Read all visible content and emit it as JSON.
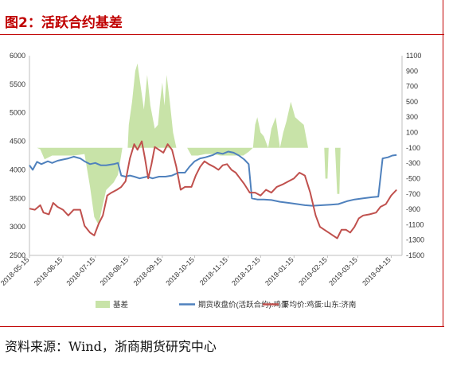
{
  "title": "图2：活跃合约基差",
  "source": "资料来源：Wind，浙商期货研究中心",
  "chart_data": {
    "type": "line",
    "title": "",
    "xlabel": "",
    "ylabel": "",
    "left_axis": {
      "ylim": [
        2500,
        6000
      ],
      "ticks": [
        "6000",
        "5500",
        "5000",
        "4500",
        "4000",
        "3500",
        "3000",
        "2500"
      ]
    },
    "right_axis": {
      "ylim": [
        -1500,
        1100
      ],
      "ticks": [
        "1100",
        "900",
        "700",
        "500",
        "300",
        "100",
        "-100",
        "-300",
        "-500",
        "-700",
        "-900",
        "-1100",
        "-1300",
        "-1500"
      ]
    },
    "x_ticks": [
      "2018-05-15",
      "2018-06-15",
      "2018-07-15",
      "2018-08-15",
      "2018-09-15",
      "2018-10-15",
      "2018-11-15",
      "2018-12-15",
      "2019-01-15",
      "2019-02-15",
      "2019-03-15",
      "2019-04-15"
    ],
    "x_range": [
      "2018-05-15",
      "2019-04-25"
    ],
    "grid": false,
    "legend_position": "bottom",
    "series": [
      {
        "name": "基差",
        "type": "area",
        "axis": "right",
        "color": "#c8e3a8",
        "points": [
          [
            "2018-05-15",
            -100
          ],
          [
            "2018-05-22",
            -100
          ],
          [
            "2018-05-25",
            -120
          ],
          [
            "2018-05-29",
            -250
          ],
          [
            "2018-06-05",
            -200
          ],
          [
            "2018-06-15",
            -200
          ],
          [
            "2018-06-25",
            -200
          ],
          [
            "2018-07-05",
            -180
          ],
          [
            "2018-07-10",
            -600
          ],
          [
            "2018-07-14",
            -1000
          ],
          [
            "2018-07-18",
            -1100
          ],
          [
            "2018-07-21",
            -900
          ],
          [
            "2018-07-25",
            -650
          ],
          [
            "2018-08-01",
            -550
          ],
          [
            "2018-08-05",
            -450
          ],
          [
            "2018-08-07",
            -280
          ],
          [
            "2018-08-09",
            -100
          ],
          [
            "2018-08-12",
            -100
          ],
          [
            "2018-08-14",
            -100
          ],
          [
            "2018-08-15",
            200
          ],
          [
            "2018-08-18",
            500
          ],
          [
            "2018-08-21",
            900
          ],
          [
            "2018-08-23",
            1000
          ],
          [
            "2018-08-26",
            700
          ],
          [
            "2018-08-29",
            400
          ],
          [
            "2018-09-01",
            850
          ],
          [
            "2018-09-04",
            450
          ],
          [
            "2018-09-08",
            150
          ],
          [
            "2018-09-11",
            200
          ],
          [
            "2018-09-13",
            500
          ],
          [
            "2018-09-15",
            750
          ],
          [
            "2018-09-17",
            450
          ],
          [
            "2018-09-19",
            850
          ],
          [
            "2018-09-22",
            500
          ],
          [
            "2018-09-25",
            100
          ],
          [
            "2018-09-28",
            -100
          ],
          [
            "2018-10-03",
            -100
          ],
          [
            "2018-10-08",
            -100
          ],
          [
            "2018-10-12",
            -200
          ],
          [
            "2018-10-18",
            -200
          ],
          [
            "2018-10-25",
            -180
          ],
          [
            "2018-11-01",
            -180
          ],
          [
            "2018-11-08",
            -200
          ],
          [
            "2018-11-15",
            -200
          ],
          [
            "2018-11-22",
            -200
          ],
          [
            "2018-11-29",
            -200
          ],
          [
            "2018-12-04",
            -150
          ],
          [
            "2018-12-08",
            -100
          ],
          [
            "2018-12-10",
            200
          ],
          [
            "2018-12-12",
            300
          ],
          [
            "2018-12-15",
            100
          ],
          [
            "2018-12-18",
            50
          ],
          [
            "2018-12-22",
            -100
          ],
          [
            "2018-12-25",
            150
          ],
          [
            "2018-12-29",
            300
          ],
          [
            "2019-01-02",
            -100
          ],
          [
            "2019-01-05",
            100
          ],
          [
            "2019-01-08",
            250
          ],
          [
            "2019-01-12",
            500
          ],
          [
            "2019-01-16",
            300
          ],
          [
            "2019-01-20",
            250
          ],
          [
            "2019-01-24",
            200
          ],
          [
            "2019-01-28",
            -100
          ],
          [
            "2019-02-05",
            -100
          ],
          [
            "2019-02-12",
            -100
          ],
          [
            "2019-02-13",
            -500
          ],
          [
            "2019-02-15",
            -500
          ],
          [
            "2019-02-16",
            -100
          ],
          [
            "2019-02-22",
            -100
          ],
          [
            "2019-02-24",
            -700
          ],
          [
            "2019-02-26",
            -700
          ],
          [
            "2019-02-27",
            -100
          ],
          [
            "2019-03-05",
            -100
          ],
          [
            "2019-03-10",
            -100
          ],
          [
            "2019-03-15",
            -100
          ],
          [
            "2019-03-20",
            -100
          ],
          [
            "2019-03-25",
            -100
          ],
          [
            "2019-03-30",
            -100
          ],
          [
            "2019-04-05",
            -100
          ],
          [
            "2019-04-10",
            -100
          ],
          [
            "2019-04-15",
            -100
          ],
          [
            "2019-04-20",
            -100
          ]
        ]
      },
      {
        "name": "期货收盘价(活跃合约):鸡蛋",
        "type": "line",
        "axis": "left",
        "color": "#4f81bd",
        "points": [
          [
            "2018-05-15",
            4080
          ],
          [
            "2018-05-18",
            4000
          ],
          [
            "2018-05-22",
            4140
          ],
          [
            "2018-05-26",
            4100
          ],
          [
            "2018-06-01",
            4150
          ],
          [
            "2018-06-05",
            4120
          ],
          [
            "2018-06-10",
            4160
          ],
          [
            "2018-06-15",
            4180
          ],
          [
            "2018-06-20",
            4200
          ],
          [
            "2018-06-25",
            4230
          ],
          [
            "2018-07-01",
            4200
          ],
          [
            "2018-07-05",
            4150
          ],
          [
            "2018-07-10",
            4100
          ],
          [
            "2018-07-15",
            4120
          ],
          [
            "2018-07-20",
            4080
          ],
          [
            "2018-07-25",
            4080
          ],
          [
            "2018-08-01",
            4100
          ],
          [
            "2018-08-05",
            4120
          ],
          [
            "2018-08-08",
            3900
          ],
          [
            "2018-08-12",
            3880
          ],
          [
            "2018-08-16",
            3900
          ],
          [
            "2018-08-20",
            3880
          ],
          [
            "2018-08-25",
            3850
          ],
          [
            "2018-09-01",
            3880
          ],
          [
            "2018-09-06",
            3850
          ],
          [
            "2018-09-12",
            3880
          ],
          [
            "2018-09-18",
            3880
          ],
          [
            "2018-09-24",
            3900
          ],
          [
            "2018-09-30",
            3950
          ],
          [
            "2018-10-06",
            3950
          ],
          [
            "2018-10-10",
            4050
          ],
          [
            "2018-10-15",
            4150
          ],
          [
            "2018-10-20",
            4200
          ],
          [
            "2018-10-25",
            4220
          ],
          [
            "2018-11-01",
            4260
          ],
          [
            "2018-11-05",
            4300
          ],
          [
            "2018-11-10",
            4280
          ],
          [
            "2018-11-15",
            4320
          ],
          [
            "2018-11-20",
            4300
          ],
          [
            "2018-11-25",
            4250
          ],
          [
            "2018-11-30",
            4180
          ],
          [
            "2018-12-04",
            4100
          ],
          [
            "2018-12-07",
            3500
          ],
          [
            "2018-12-12",
            3480
          ],
          [
            "2018-12-18",
            3480
          ],
          [
            "2018-12-25",
            3470
          ],
          [
            "2019-01-02",
            3440
          ],
          [
            "2019-01-10",
            3420
          ],
          [
            "2019-01-18",
            3400
          ],
          [
            "2019-01-25",
            3380
          ],
          [
            "2019-02-01",
            3370
          ],
          [
            "2019-02-10",
            3380
          ],
          [
            "2019-02-18",
            3390
          ],
          [
            "2019-02-25",
            3400
          ],
          [
            "2019-03-05",
            3450
          ],
          [
            "2019-03-12",
            3480
          ],
          [
            "2019-03-20",
            3500
          ],
          [
            "2019-03-28",
            3520
          ],
          [
            "2019-04-03",
            3530
          ],
          [
            "2019-04-07",
            4200
          ],
          [
            "2019-04-12",
            4220
          ],
          [
            "2019-04-16",
            4250
          ],
          [
            "2019-04-20",
            4260
          ]
        ]
      },
      {
        "name": "平均价:鸡蛋:山东:济南",
        "type": "line",
        "axis": "left",
        "color": "#c0504d",
        "points": [
          [
            "2018-05-15",
            3320
          ],
          [
            "2018-05-20",
            3300
          ],
          [
            "2018-05-25",
            3380
          ],
          [
            "2018-05-28",
            3250
          ],
          [
            "2018-06-02",
            3220
          ],
          [
            "2018-06-06",
            3420
          ],
          [
            "2018-06-10",
            3350
          ],
          [
            "2018-06-15",
            3300
          ],
          [
            "2018-06-20",
            3200
          ],
          [
            "2018-06-25",
            3300
          ],
          [
            "2018-07-01",
            3300
          ],
          [
            "2018-07-05",
            3020
          ],
          [
            "2018-07-10",
            2900
          ],
          [
            "2018-07-14",
            2850
          ],
          [
            "2018-07-18",
            3050
          ],
          [
            "2018-07-22",
            3200
          ],
          [
            "2018-07-26",
            3550
          ],
          [
            "2018-07-30",
            3600
          ],
          [
            "2018-08-04",
            3650
          ],
          [
            "2018-08-08",
            3700
          ],
          [
            "2018-08-12",
            3800
          ],
          [
            "2018-08-16",
            4200
          ],
          [
            "2018-08-20",
            4450
          ],
          [
            "2018-08-23",
            4350
          ],
          [
            "2018-08-27",
            4500
          ],
          [
            "2018-08-30",
            4200
          ],
          [
            "2018-09-02",
            3850
          ],
          [
            "2018-09-05",
            4100
          ],
          [
            "2018-09-08",
            4400
          ],
          [
            "2018-09-12",
            4350
          ],
          [
            "2018-09-16",
            4300
          ],
          [
            "2018-09-20",
            4450
          ],
          [
            "2018-09-24",
            4350
          ],
          [
            "2018-09-28",
            4050
          ],
          [
            "2018-10-02",
            3650
          ],
          [
            "2018-10-06",
            3700
          ],
          [
            "2018-10-12",
            3700
          ],
          [
            "2018-10-16",
            3900
          ],
          [
            "2018-10-20",
            4050
          ],
          [
            "2018-10-24",
            4150
          ],
          [
            "2018-10-28",
            4100
          ],
          [
            "2018-11-02",
            4050
          ],
          [
            "2018-11-06",
            4000
          ],
          [
            "2018-11-10",
            4080
          ],
          [
            "2018-11-14",
            4100
          ],
          [
            "2018-11-18",
            4000
          ],
          [
            "2018-11-22",
            3950
          ],
          [
            "2018-11-26",
            3850
          ],
          [
            "2018-11-30",
            3750
          ],
          [
            "2018-12-05",
            3600
          ],
          [
            "2018-12-10",
            3600
          ],
          [
            "2018-12-15",
            3550
          ],
          [
            "2018-12-20",
            3650
          ],
          [
            "2018-12-25",
            3600
          ],
          [
            "2018-12-30",
            3700
          ],
          [
            "2019-01-05",
            3750
          ],
          [
            "2019-01-10",
            3800
          ],
          [
            "2019-01-15",
            3850
          ],
          [
            "2019-01-20",
            3950
          ],
          [
            "2019-01-25",
            3900
          ],
          [
            "2019-01-30",
            3600
          ],
          [
            "2019-02-04",
            3200
          ],
          [
            "2019-02-08",
            3000
          ],
          [
            "2019-02-12",
            2950
          ],
          [
            "2019-02-16",
            2900
          ],
          [
            "2019-02-20",
            2850
          ],
          [
            "2019-02-24",
            2800
          ],
          [
            "2019-02-28",
            2950
          ],
          [
            "2019-03-04",
            2950
          ],
          [
            "2019-03-08",
            2900
          ],
          [
            "2019-03-12",
            3000
          ],
          [
            "2019-03-16",
            3150
          ],
          [
            "2019-03-20",
            3200
          ],
          [
            "2019-03-26",
            3220
          ],
          [
            "2019-04-01",
            3250
          ],
          [
            "2019-04-05",
            3350
          ],
          [
            "2019-04-10",
            3400
          ],
          [
            "2019-04-15",
            3550
          ],
          [
            "2019-04-20",
            3650
          ]
        ]
      }
    ]
  }
}
